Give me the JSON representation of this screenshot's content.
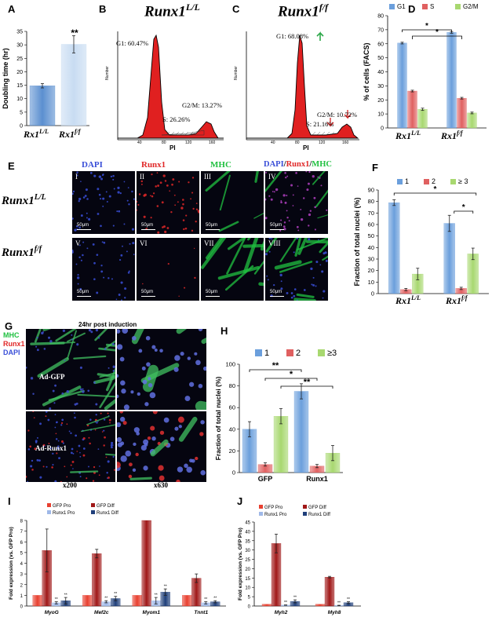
{
  "panels": {
    "A": {
      "label": "A",
      "chart_data": {
        "type": "bar",
        "categories": [
          "Rx1L/L",
          "Rx1f/f"
        ],
        "values": [
          14.8,
          30.2
        ],
        "errors": [
          0.8,
          3.2
        ],
        "ylabel": "Doubling time (hr)",
        "ylim": [
          0,
          35
        ],
        "yticks": [
          0,
          5,
          10,
          15,
          20,
          25,
          30,
          35
        ],
        "significance": "**",
        "colors": [
          "#5b8fd0",
          "#c8dcf2"
        ]
      },
      "cat_labels": [
        {
          "base": "Rx1",
          "sup": "L/L"
        },
        {
          "base": "Rx1",
          "sup": "f/f"
        }
      ]
    },
    "B": {
      "label": "B",
      "title_base": "Runx1",
      "title_sup": "L/L",
      "g1": "G1: 60.47%",
      "s": "S: 26.26%",
      "g2m": "G2/M: 13.27%",
      "xlabel": "PI",
      "ylabel": "Number",
      "xticks": [
        "40",
        "80",
        "120",
        "160"
      ]
    },
    "C": {
      "label": "C",
      "title_base": "Runx1",
      "title_sup": "f/f",
      "g1": "G1: 68.08%",
      "s": "S: 21.16%",
      "g2m": "G2/M: 10.72%",
      "xlabel": "PI",
      "ylabel": "Number",
      "xticks": [
        "40",
        "80",
        "120",
        "160"
      ],
      "up_arrow_color": "#2ea84a",
      "down_arrow_color": "#d42020"
    },
    "D": {
      "label": "D",
      "chart_data": {
        "type": "bar",
        "categories": [
          "Rx1L/L",
          "Rx1f/f"
        ],
        "series": [
          {
            "name": "G1",
            "values": [
              60.5,
              68.1
            ],
            "errors": [
              0.6,
              0.6
            ],
            "color": "#6b9fdc"
          },
          {
            "name": "S",
            "values": [
              26.3,
              21.2
            ],
            "errors": [
              0.6,
              0.6
            ],
            "color": "#e06060"
          },
          {
            "name": "G2/M",
            "values": [
              13.3,
              10.7
            ],
            "errors": [
              0.8,
              0.6
            ],
            "color": "#a8d870"
          }
        ],
        "ylabel": "% of cells (FACS)",
        "ylim": [
          0,
          80
        ],
        "yticks": [
          0,
          10,
          20,
          30,
          40,
          50,
          60,
          70,
          80
        ],
        "legend": "top",
        "significance": [
          "*",
          "*"
        ]
      },
      "cat_labels": [
        {
          "base": "Rx1",
          "sup": "L/L"
        },
        {
          "base": "Rx1",
          "sup": "f/f"
        }
      ]
    },
    "E": {
      "label": "E",
      "col_headers": [
        "DAPI",
        "Runx1",
        "MHC"
      ],
      "merge_header": {
        "a": "DAPI",
        "sep1": "/",
        "b": "Runx1",
        "sep2": "/",
        "c": "MHC"
      },
      "row_labels": [
        {
          "base": "Runx1",
          "sup": "L/L"
        },
        {
          "base": "Runx1",
          "sup": "f/f"
        }
      ],
      "roman": [
        "I",
        "II",
        "III",
        "IV",
        "V",
        "VI",
        "VII",
        "VIII"
      ],
      "scalebar": "50μm",
      "colors": {
        "dapi": "#3a4fd8",
        "runx1": "#e02828",
        "mhc": "#20c040"
      }
    },
    "F": {
      "label": "F",
      "chart_data": {
        "type": "bar",
        "categories": [
          "Rx1L/L",
          "Rx1f/f"
        ],
        "series": [
          {
            "name": "1",
            "values": [
              79,
              61
            ],
            "errors": [
              2.5,
              7
            ],
            "color": "#6b9fdc"
          },
          {
            "name": "2",
            "values": [
              3.5,
              4.5
            ],
            "errors": [
              1,
              1
            ],
            "color": "#e06060"
          },
          {
            "name": "≥ 3",
            "values": [
              17,
              34.5
            ],
            "errors": [
              5,
              5
            ],
            "color": "#a8d870"
          }
        ],
        "ylabel": "Fraction of total nuclei (%)",
        "ylim": [
          0,
          90
        ],
        "yticks": [
          0,
          10,
          20,
          30,
          40,
          50,
          60,
          70,
          80,
          90
        ],
        "legend": "top",
        "significance": [
          "*",
          "*"
        ]
      },
      "cat_labels": [
        {
          "base": "Rx1",
          "sup": "L/L"
        },
        {
          "base": "Rx1",
          "sup": "f/f"
        }
      ]
    },
    "G": {
      "label": "G",
      "legend": [
        "MHC",
        "Runx1",
        "DAPI"
      ],
      "legend_colors": [
        "#20c040",
        "#e02828",
        "#3a4fd8"
      ],
      "header": "24hr post induction",
      "rows": [
        "Ad-GFP",
        "Ad-Runx1"
      ],
      "cols": [
        "x200",
        "x630"
      ]
    },
    "H": {
      "label": "H",
      "chart_data": {
        "type": "bar",
        "categories": [
          "GFP",
          "Runx1"
        ],
        "series": [
          {
            "name": "1",
            "values": [
              40,
              75
            ],
            "errors": [
              7,
              7
            ],
            "color": "#6b9fdc"
          },
          {
            "name": "2",
            "values": [
              7.5,
              6
            ],
            "errors": [
              1.5,
              1.5
            ],
            "color": "#e06060"
          },
          {
            "name": "≥3",
            "values": [
              52,
              18
            ],
            "errors": [
              7,
              7
            ],
            "color": "#a8d870"
          }
        ],
        "ylabel": "Fraction of total nuclei (%)",
        "ylim": [
          0,
          100
        ],
        "yticks": [
          0,
          20,
          40,
          60,
          80,
          100
        ],
        "legend": "top",
        "significance": [
          "**",
          "*",
          "**"
        ]
      }
    },
    "I": {
      "label": "I",
      "chart_data": {
        "type": "bar",
        "categories": [
          "MyoG",
          "Mef2c",
          "Myom1",
          "Tnnt1"
        ],
        "series": [
          {
            "name": "GFP Pro",
            "values": [
              1,
              1,
              1,
              1
            ],
            "errors": [
              0,
              0,
              0,
              0
            ],
            "color": "#e84030"
          },
          {
            "name": "GFP Diff",
            "values": [
              5.2,
              4.9,
              8.0,
              2.6
            ],
            "errors": [
              2.0,
              0.4,
              0,
              0.4
            ],
            "color": "#a01818"
          },
          {
            "name": "Runx1 Pro",
            "values": [
              0.3,
              0.4,
              0.5,
              0.3
            ],
            "errors": [
              0.1,
              0.1,
              0.3,
              0.1
            ],
            "color": "#9fb8e8"
          },
          {
            "name": "Runx1 Diff",
            "values": [
              0.5,
              0.7,
              1.3,
              0.4
            ],
            "errors": [
              0.3,
              0.2,
              0.3,
              0.1
            ],
            "color": "#1f3f7a"
          }
        ],
        "ylabel": "Fold expression (vs. GFP Pro)",
        "ylim": [
          0,
          8
        ],
        "yticks": [
          0,
          1,
          2,
          3,
          4,
          5,
          6,
          7,
          8
        ],
        "legend": "top-left",
        "significance": "**"
      }
    },
    "J": {
      "label": "J",
      "chart_data": {
        "type": "bar",
        "categories": [
          "Myh2",
          "Myh8"
        ],
        "series": [
          {
            "name": "GFP Pro",
            "values": [
              1,
              1
            ],
            "errors": [
              0,
              0
            ],
            "color": "#e84030"
          },
          {
            "name": "GFP Diff",
            "values": [
              33.5,
              15.5
            ],
            "errors": [
              5,
              0.4
            ],
            "color": "#a01818"
          },
          {
            "name": "Runx1 Pro",
            "values": [
              0.5,
              0.3
            ],
            "errors": [
              0.1,
              0.1
            ],
            "color": "#9fb8e8"
          },
          {
            "name": "Runx1 Diff",
            "values": [
              2.5,
              1.8
            ],
            "errors": [
              0.8,
              0.5
            ],
            "color": "#1f3f7a"
          }
        ],
        "ylabel": "Fold expression (vs. GFP Pro)",
        "ylim": [
          0,
          45
        ],
        "yticks": [
          0,
          5,
          10,
          15,
          20,
          25,
          30,
          35,
          40,
          45
        ],
        "legend": "top-left",
        "significance": "**"
      }
    }
  }
}
